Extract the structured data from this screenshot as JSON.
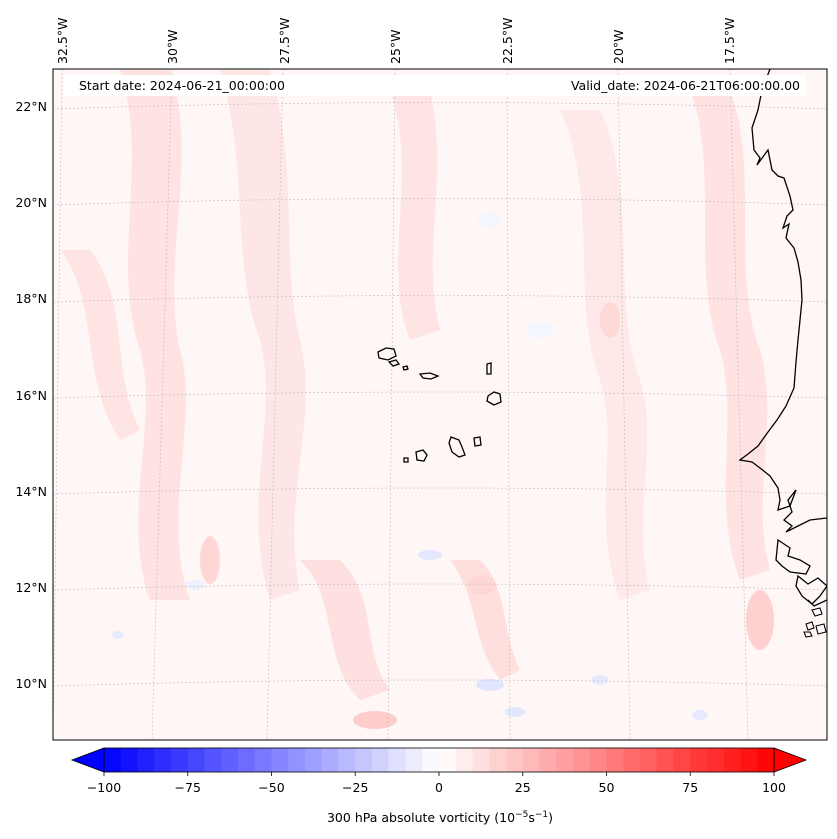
{
  "header": {
    "start_date": "Start date: 2024-06-21_00:00:00",
    "valid_date": "Valid_date: 2024-06-21T06:00:00.00"
  },
  "longitude_labels": [
    "32.5°W",
    "30°W",
    "27.5°W",
    "25°W",
    "22.5°W",
    "20°W",
    "17.5°W"
  ],
  "latitude_labels": [
    "22°N",
    "20°N",
    "18°N",
    "16°N",
    "14°N",
    "12°N",
    "10°N"
  ],
  "colorbar": {
    "label_text": "300 hPa absolute vorticity (10",
    "label_exp1": "−5",
    "label_mid": "s",
    "label_exp2": "−1",
    "label_close": ")",
    "ticks": [
      "−100",
      "−75",
      "−50",
      "−25",
      "0",
      "25",
      "50",
      "75",
      "100"
    ],
    "min": -100,
    "max": 100,
    "step": 5,
    "low_color": "#0000ff",
    "mid_color": "#ffffff",
    "high_color": "#ff0000"
  },
  "colors": {
    "background_fill": "#fff6f6",
    "coastline": "#000000",
    "gridline": "#bbbbbb"
  }
}
